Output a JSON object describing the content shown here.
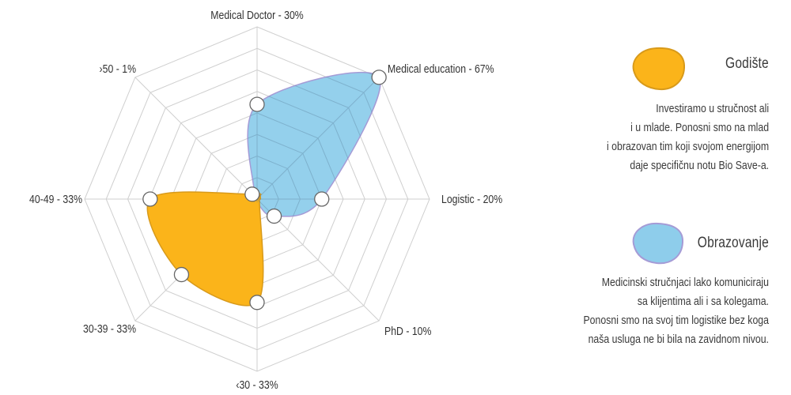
{
  "chart_data": {
    "type": "radar",
    "axes": [
      "Medical Doctor - 30%",
      "Medical education - 67%",
      "Logistic - 20%",
      "PhD - 10%",
      "‹30 - 33%",
      "30-39 - 33%",
      "40-49 - 33%",
      "›50 - 1%"
    ],
    "rings": 8,
    "range": [
      0,
      1
    ],
    "series": [
      {
        "name": "Obrazovanje",
        "color": "#8ECDEB",
        "stroke": "#A59BD6",
        "values": [
          0.55,
          1.0,
          0.375,
          0.14,
          0,
          0,
          0,
          0
        ]
      },
      {
        "name": "Godište",
        "color": "#FBB41A",
        "stroke": "#D89A1A",
        "values": [
          0,
          0,
          0,
          0,
          0.6,
          0.62,
          0.62,
          0.04
        ]
      }
    ],
    "markers": [
      {
        "axis": 0,
        "value": 0.55
      },
      {
        "axis": 1,
        "value": 1.0
      },
      {
        "axis": 2,
        "value": 0.375
      },
      {
        "axis": 3,
        "value": 0.14
      },
      {
        "axis": 4,
        "value": 0.6
      },
      {
        "axis": 5,
        "value": 0.62
      },
      {
        "axis": 6,
        "value": 0.62
      },
      {
        "axis": 7,
        "value": 0.04
      }
    ],
    "grid": true,
    "legend_placement": "right"
  },
  "legend": [
    {
      "title": "Godište",
      "color": "#FBB41A",
      "stroke": "#D89A1A",
      "lines": [
        "Investiramo u stručnost ali",
        "i u mlade. Ponosni smo na mlad",
        "i obrazovan tim koji svojom energijom",
        "daje specifičnu notu Bio Save-a."
      ]
    },
    {
      "title": "Obrazovanje",
      "color": "#8ECDEB",
      "stroke": "#A59BD6",
      "lines": [
        "Medicinski stručnjaci lako komuniciraju",
        "sa klijentima ali i sa kolegama.",
        "Ponosni smo na svoj tim logistike bez koga",
        "naša usluga ne bi bila na zavidnom nivou."
      ]
    }
  ]
}
